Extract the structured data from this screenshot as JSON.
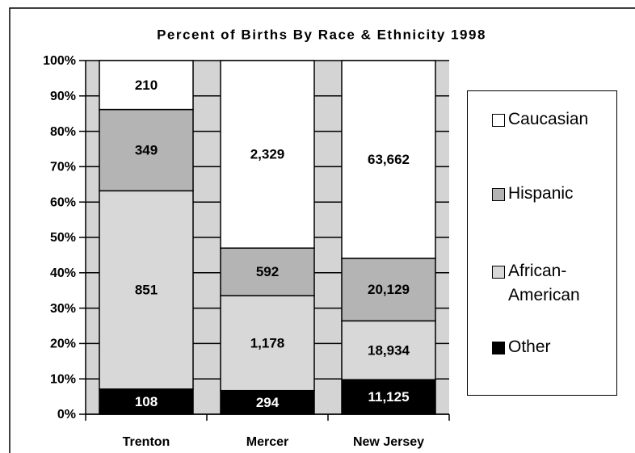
{
  "chart_data": {
    "type": "bar",
    "stack": "percent",
    "title": "Percent of Births By Race & Ethnicity 1998",
    "categories": [
      "Trenton",
      "Mercer",
      "New Jersey"
    ],
    "series": [
      {
        "name": "Caucasian",
        "color": "#ffffff",
        "values": [
          210,
          2329,
          63662
        ],
        "value_labels": [
          "210",
          "2,329",
          "63,662"
        ]
      },
      {
        "name": "Hispanic",
        "color": "#b4b4b4",
        "values": [
          349,
          592,
          20129
        ],
        "value_labels": [
          "349",
          "592",
          "20,129"
        ]
      },
      {
        "name": "African-American",
        "color": "#d8d8d8",
        "values": [
          851,
          1178,
          18934
        ],
        "value_labels": [
          "851",
          "1,178",
          "18,934"
        ]
      },
      {
        "name": "Other",
        "color": "#000000",
        "values": [
          108,
          294,
          11125
        ],
        "value_labels": [
          "108",
          "294",
          "11,125"
        ]
      }
    ],
    "ylim": [
      0,
      100
    ],
    "yticks": [
      {
        "value": 0,
        "label": "0%"
      },
      {
        "value": 10,
        "label": "10%"
      },
      {
        "value": 20,
        "label": "20%"
      },
      {
        "value": 30,
        "label": "30%"
      },
      {
        "value": 40,
        "label": "40%"
      },
      {
        "value": 50,
        "label": "50%"
      },
      {
        "value": 60,
        "label": "60%"
      },
      {
        "value": 70,
        "label": "70%"
      },
      {
        "value": 80,
        "label": "80%"
      },
      {
        "value": 90,
        "label": "90%"
      },
      {
        "value": 100,
        "label": "100%"
      }
    ],
    "grid": true,
    "legend": "right",
    "plot_background": "#d4d4d4"
  }
}
